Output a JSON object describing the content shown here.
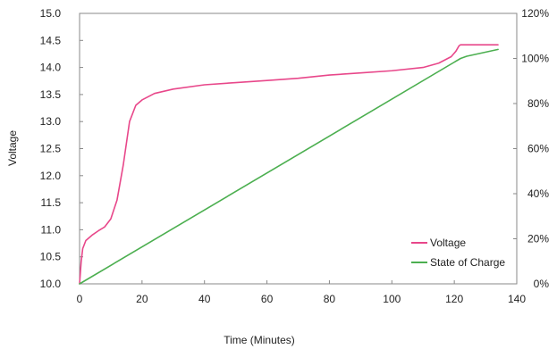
{
  "chart_data": {
    "type": "line",
    "title": "",
    "xlabel": "Time (Minutes)",
    "ylabel": "Voltage",
    "xlim": [
      0,
      140
    ],
    "ylim": [
      10.0,
      15.0
    ],
    "y2lim": [
      0,
      120
    ],
    "x_ticks": [
      "0",
      "20",
      "40",
      "60",
      "80",
      "100",
      "120",
      "140"
    ],
    "y_ticks": [
      "10.0",
      "10.5",
      "11.0",
      "11.5",
      "12.0",
      "12.5",
      "13.0",
      "13.5",
      "14.0",
      "14.5",
      "15.0"
    ],
    "y2_ticks": [
      "0%",
      "20%",
      "40%",
      "60%",
      "80%",
      "100%",
      "120%"
    ],
    "grid": false,
    "legend_position": "bottom-right",
    "series": [
      {
        "name": "Voltage",
        "axis": "left",
        "color": "#e8478a",
        "x": [
          0,
          0.5,
          1,
          2,
          4,
          6,
          8,
          10,
          12,
          14,
          16,
          18,
          20,
          24,
          30,
          40,
          50,
          60,
          70,
          80,
          90,
          100,
          110,
          115,
          119,
          120.5,
          121.5,
          122,
          126,
          130,
          134
        ],
        "y": [
          10.0,
          10.4,
          10.65,
          10.8,
          10.9,
          10.98,
          11.05,
          11.2,
          11.55,
          12.2,
          13.0,
          13.3,
          13.4,
          13.52,
          13.6,
          13.68,
          13.72,
          13.76,
          13.8,
          13.86,
          13.9,
          13.94,
          14.0,
          14.08,
          14.2,
          14.3,
          14.4,
          14.42,
          14.42,
          14.42,
          14.42
        ]
      },
      {
        "name": "State of Charge",
        "axis": "right",
        "color": "#4caf50",
        "x": [
          0,
          122,
          124,
          134
        ],
        "y": [
          0,
          100,
          101,
          104
        ]
      }
    ]
  }
}
